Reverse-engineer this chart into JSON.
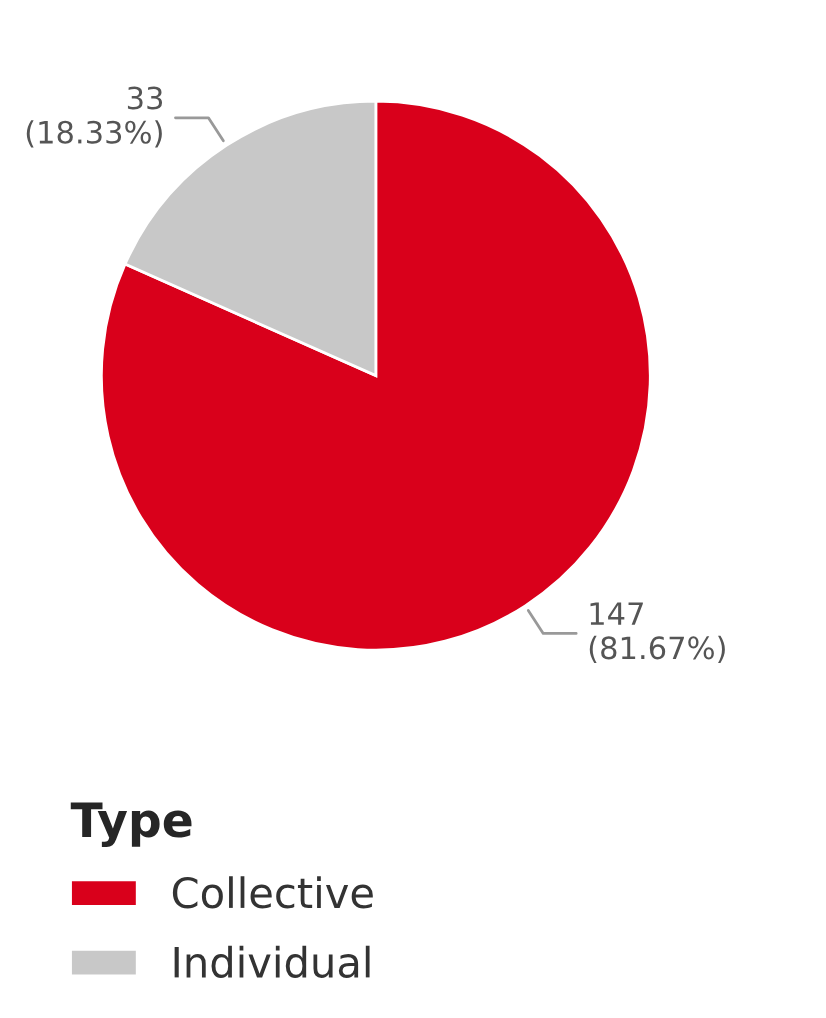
{
  "chart_data": {
    "type": "pie",
    "legend_title": "Type",
    "categories": [
      "Collective",
      "Individual"
    ],
    "values": [
      147,
      33
    ],
    "colors": [
      "#d9001b",
      "#c8c8c8"
    ],
    "value_labels": [
      "147\n(81.67%)",
      "33\n(18.33%)"
    ],
    "legend": "bottom left"
  }
}
